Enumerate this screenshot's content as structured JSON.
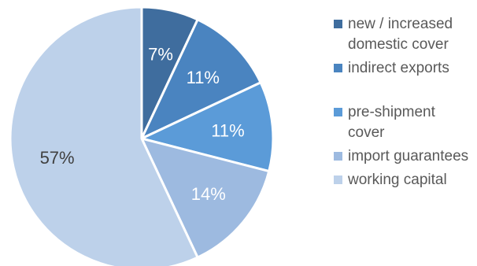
{
  "chart_data": {
    "type": "pie",
    "title": "",
    "legend_position": "right",
    "slices": [
      {
        "name": "new / increased domestic cover",
        "value": 7,
        "label": "7%",
        "color": "#3f6d9e",
        "label_color": "#ffffff"
      },
      {
        "name": "indirect exports",
        "value": 11,
        "label": "11%",
        "color": "#4a84c0",
        "label_color": "#ffffff"
      },
      {
        "name": "pre-shipment cover",
        "value": 11,
        "label": "11%",
        "color": "#5b9bd8",
        "label_color": "#ffffff"
      },
      {
        "name": "import guarantees",
        "value": 14,
        "label": "14%",
        "color": "#9dbae0",
        "label_color": "#ffffff"
      },
      {
        "name": "working capital",
        "value": 57,
        "label": "57%",
        "color": "#bdd1ea",
        "label_color": "#404040"
      }
    ]
  }
}
